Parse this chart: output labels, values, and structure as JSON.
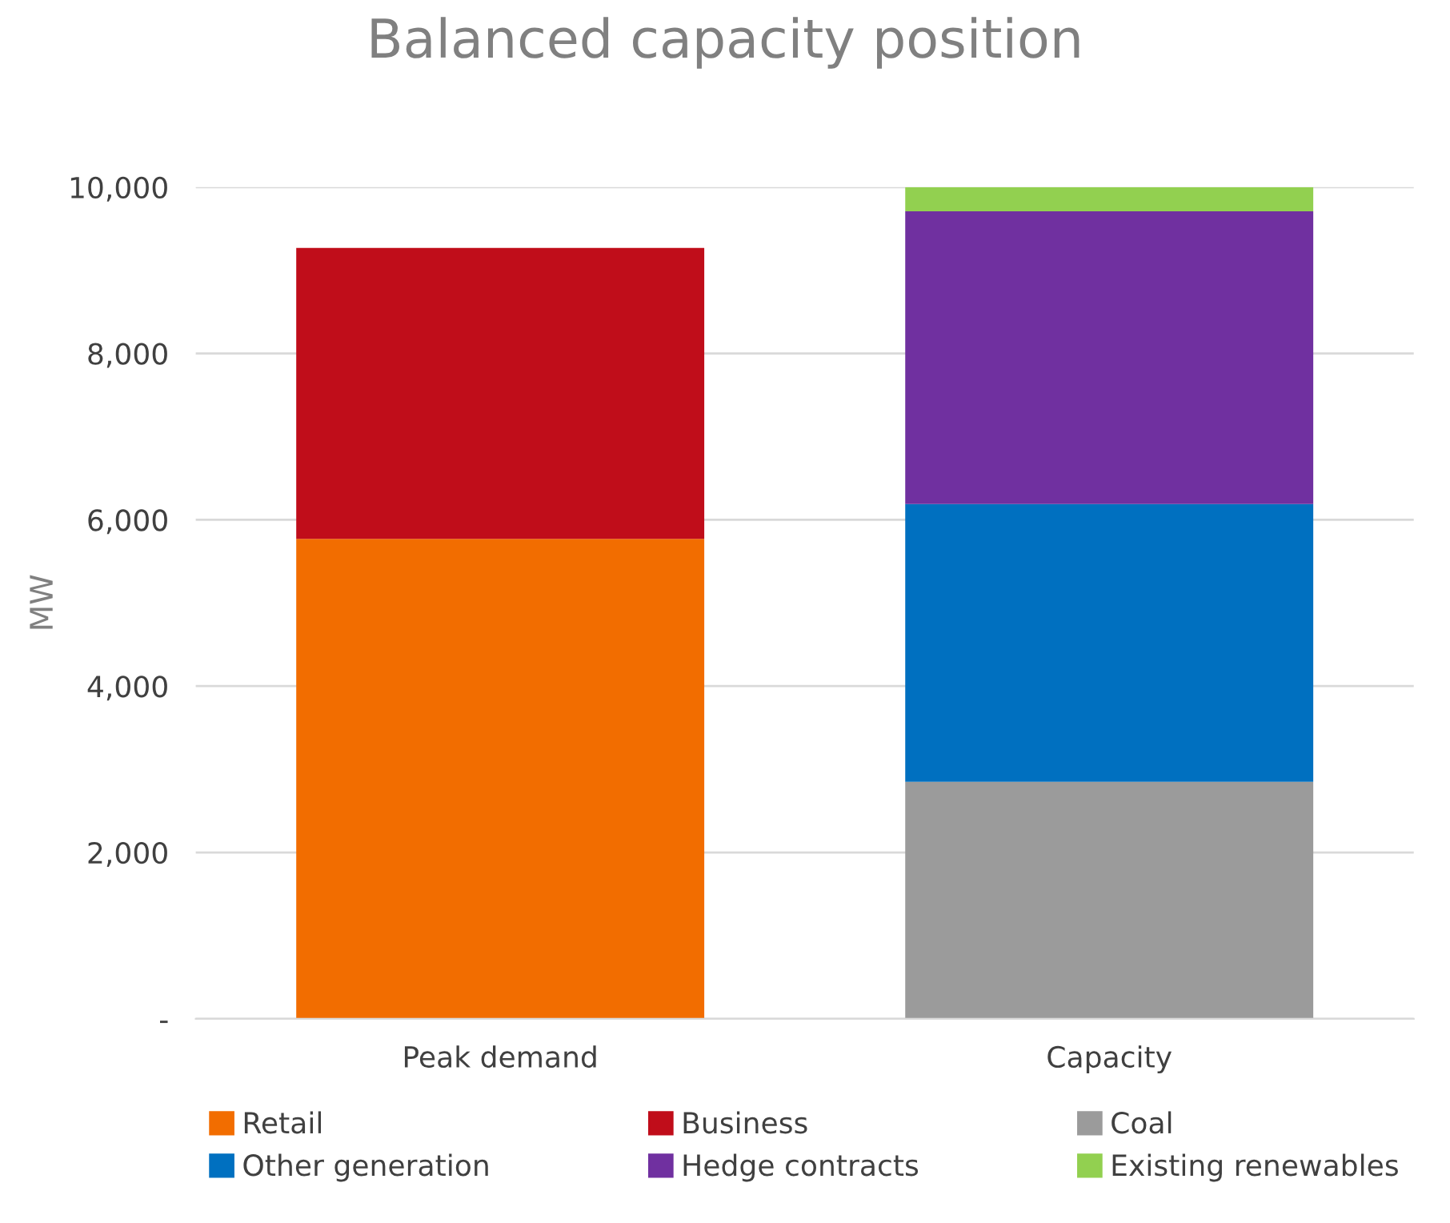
{
  "chart_data": {
    "type": "bar",
    "title": "Balanced capacity position",
    "ylabel": "MW",
    "stacked": true,
    "categories": [
      "Peak demand",
      "Capacity"
    ],
    "series": [
      {
        "name": "Retail",
        "color": "#f26d00",
        "values": [
          5770,
          null
        ]
      },
      {
        "name": "Business",
        "color": "#c00d1a",
        "values": [
          3500,
          null
        ]
      },
      {
        "name": "Coal",
        "color": "#9b9b9b",
        "values": [
          null,
          2850
        ]
      },
      {
        "name": "Other generation",
        "color": "#0070c0",
        "values": [
          null,
          3340
        ]
      },
      {
        "name": "Hedge contracts",
        "color": "#7030a0",
        "values": [
          null,
          3520
        ]
      },
      {
        "name": "Existing renewables",
        "color": "#92d050",
        "values": [
          null,
          290
        ]
      }
    ],
    "ylim": [
      0,
      10000
    ],
    "yticks": [
      {
        "value": 0,
        "label": "-"
      },
      {
        "value": 2000,
        "label": "2,000"
      },
      {
        "value": 4000,
        "label": "4,000"
      },
      {
        "value": 6000,
        "label": "6,000"
      },
      {
        "value": 8000,
        "label": "8,000"
      },
      {
        "value": 10000,
        "label": "10,000"
      }
    ],
    "grid": "y",
    "legend": "bottom"
  }
}
